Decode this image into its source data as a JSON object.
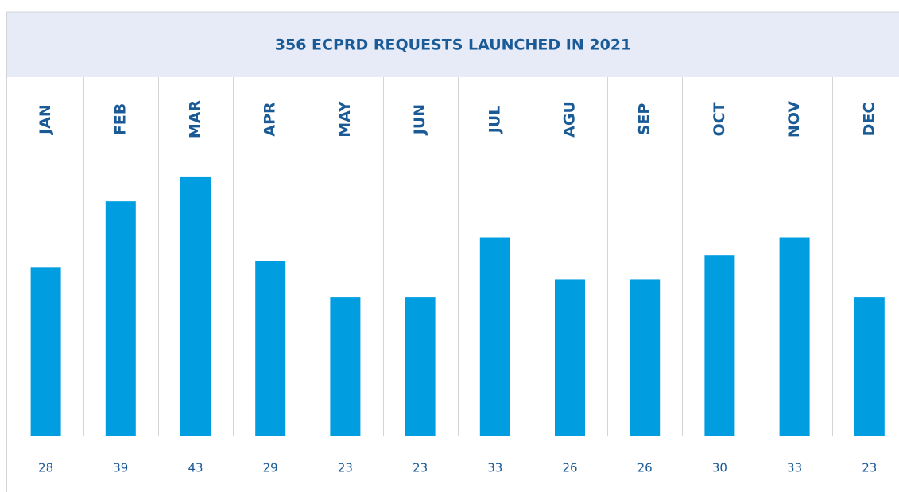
{
  "chart_data": {
    "type": "bar",
    "title": "356 ECPRD REQUESTS LAUNCHED IN 2021",
    "categories": [
      "JAN",
      "FEB",
      "MAR",
      "APR",
      "MAY",
      "JUN",
      "JUL",
      "AGU",
      "SEP",
      "OCT",
      "NOV",
      "DEC"
    ],
    "values": [
      28,
      39,
      43,
      29,
      23,
      23,
      33,
      26,
      26,
      30,
      33,
      23
    ],
    "color": "#009ee0"
  }
}
